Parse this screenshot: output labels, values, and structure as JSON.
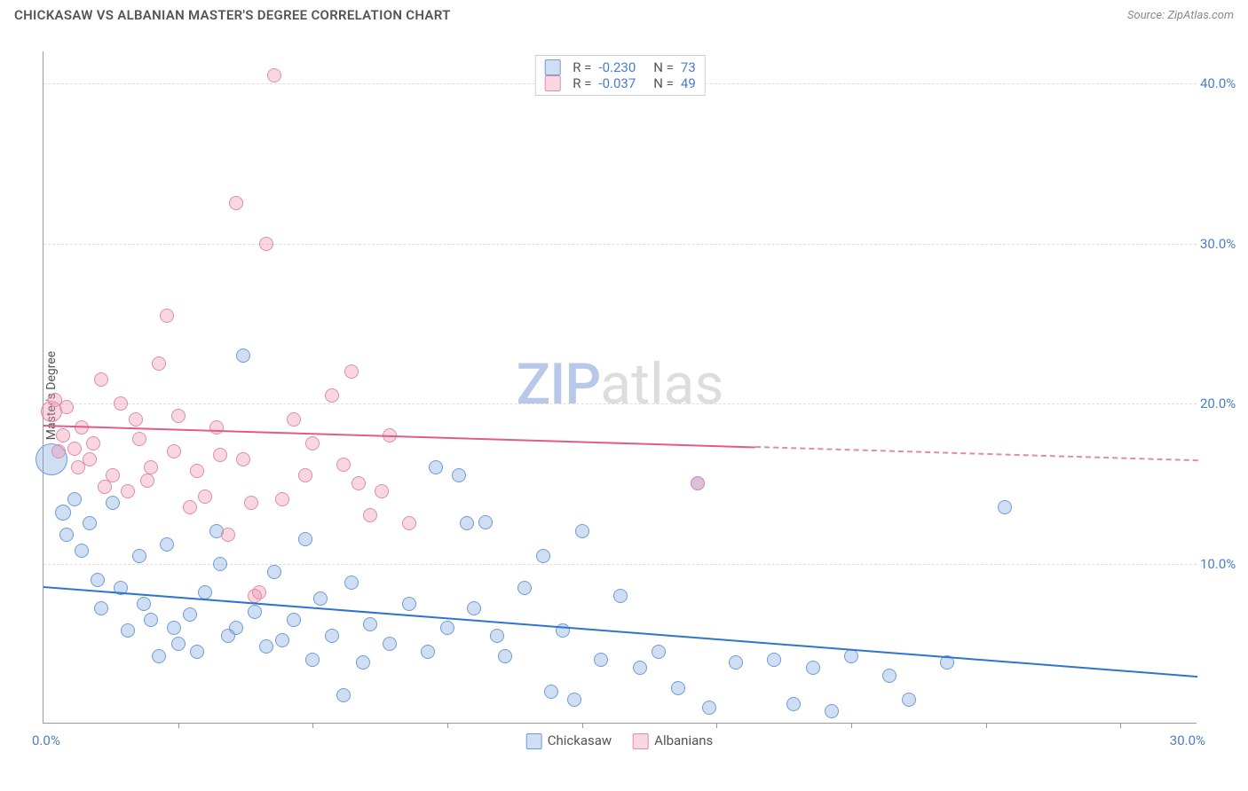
{
  "header": {
    "title": "CHICKASAW VS ALBANIAN MASTER'S DEGREE CORRELATION CHART",
    "source_prefix": "Source: ",
    "source": "ZipAtlas.com"
  },
  "chart": {
    "type": "scatter",
    "ylabel": "Master's Degree",
    "xlim": [
      0,
      30
    ],
    "ylim": [
      0,
      42
    ],
    "xticks_minor": [
      3.5,
      7,
      10.5,
      14,
      17.5,
      21,
      24.5,
      28
    ],
    "yticks": [
      {
        "v": 10,
        "label": "10.0%"
      },
      {
        "v": 20,
        "label": "20.0%"
      },
      {
        "v": 30,
        "label": "30.0%"
      },
      {
        "v": 40,
        "label": "40.0%"
      }
    ],
    "xmin_label": "0.0%",
    "xmax_label": "30.0%",
    "background": "#ffffff",
    "grid_color": "#dddddd",
    "axis_color": "#999999",
    "tick_label_color": "#4a7ec9",
    "watermark": {
      "part1": "ZIP",
      "part2": "atlas"
    },
    "series": [
      {
        "id": "chickasaw",
        "label": "Chickasaw",
        "R": "-0.230",
        "N": "73",
        "fill": "rgba(120,160,220,0.35)",
        "stroke": "#6e9cd6",
        "line_color": "#2e74d0",
        "marker_radius": 8,
        "regression": {
          "y_at_xmin": 8.6,
          "y_at_xmax": 3.0,
          "solid_until_x": 30
        },
        "points": [
          [
            0.2,
            16.5,
            18
          ],
          [
            0.5,
            13.2,
            9
          ],
          [
            0.8,
            14.0,
            8
          ],
          [
            1.0,
            10.8,
            8
          ],
          [
            1.2,
            12.5,
            8
          ],
          [
            1.5,
            7.2,
            8
          ],
          [
            1.8,
            13.8,
            8
          ],
          [
            2.0,
            8.5,
            8
          ],
          [
            2.2,
            5.8,
            8
          ],
          [
            2.5,
            10.5,
            8
          ],
          [
            2.8,
            6.5,
            8
          ],
          [
            3.0,
            4.2,
            8
          ],
          [
            3.2,
            11.2,
            8
          ],
          [
            3.5,
            5.0,
            8
          ],
          [
            3.8,
            6.8,
            8
          ],
          [
            4.0,
            4.5,
            8
          ],
          [
            4.2,
            8.2,
            8
          ],
          [
            4.5,
            12.0,
            8
          ],
          [
            4.8,
            5.5,
            8
          ],
          [
            5.0,
            6.0,
            8
          ],
          [
            5.2,
            23.0,
            8
          ],
          [
            5.5,
            7.0,
            8
          ],
          [
            5.8,
            4.8,
            8
          ],
          [
            6.0,
            9.5,
            8
          ],
          [
            6.2,
            5.2,
            8
          ],
          [
            6.5,
            6.5,
            8
          ],
          [
            6.8,
            11.5,
            8
          ],
          [
            7.0,
            4.0,
            8
          ],
          [
            7.2,
            7.8,
            8
          ],
          [
            7.5,
            5.5,
            8
          ],
          [
            7.8,
            1.8,
            8
          ],
          [
            8.0,
            8.8,
            8
          ],
          [
            8.5,
            6.2,
            8
          ],
          [
            9.0,
            5.0,
            8
          ],
          [
            9.5,
            7.5,
            8
          ],
          [
            10.0,
            4.5,
            8
          ],
          [
            10.2,
            16.0,
            8
          ],
          [
            10.5,
            6.0,
            8
          ],
          [
            10.8,
            15.5,
            8
          ],
          [
            11.0,
            12.5,
            8
          ],
          [
            11.2,
            7.2,
            8
          ],
          [
            11.5,
            12.6,
            8
          ],
          [
            11.8,
            5.5,
            8
          ],
          [
            12.0,
            4.2,
            8
          ],
          [
            12.5,
            8.5,
            8
          ],
          [
            13.0,
            10.5,
            8
          ],
          [
            13.2,
            2.0,
            8
          ],
          [
            13.5,
            5.8,
            8
          ],
          [
            13.8,
            1.5,
            8
          ],
          [
            14.0,
            12.0,
            8
          ],
          [
            14.5,
            4.0,
            8
          ],
          [
            15.0,
            8.0,
            8
          ],
          [
            15.5,
            3.5,
            8
          ],
          [
            16.0,
            4.5,
            8
          ],
          [
            16.5,
            2.2,
            8
          ],
          [
            17.0,
            15.0,
            8
          ],
          [
            17.3,
            1.0,
            8
          ],
          [
            18.0,
            3.8,
            8
          ],
          [
            19.0,
            4.0,
            8
          ],
          [
            19.5,
            1.2,
            8
          ],
          [
            20.0,
            3.5,
            8
          ],
          [
            20.5,
            0.8,
            8
          ],
          [
            21.0,
            4.2,
            8
          ],
          [
            22.0,
            3.0,
            8
          ],
          [
            22.5,
            1.5,
            8
          ],
          [
            23.5,
            3.8,
            8
          ],
          [
            25.0,
            13.5,
            8
          ],
          [
            0.6,
            11.8,
            8
          ],
          [
            1.4,
            9.0,
            8
          ],
          [
            2.6,
            7.5,
            8
          ],
          [
            3.4,
            6.0,
            8
          ],
          [
            4.6,
            10.0,
            8
          ],
          [
            8.3,
            3.8,
            8
          ]
        ]
      },
      {
        "id": "albanians",
        "label": "Albanians",
        "R": "-0.037",
        "N": "49",
        "fill": "rgba(235,140,170,0.35)",
        "stroke": "#e08ca8",
        "line_color": "#e35a8a",
        "marker_radius": 8,
        "regression": {
          "y_at_xmin": 18.7,
          "y_at_xmax": 16.5,
          "solid_until_x": 18.5
        },
        "points": [
          [
            0.2,
            19.5,
            12
          ],
          [
            0.3,
            20.2,
            8
          ],
          [
            0.5,
            18.0,
            8
          ],
          [
            0.6,
            19.8,
            8
          ],
          [
            0.8,
            17.2,
            8
          ],
          [
            1.0,
            18.5,
            8
          ],
          [
            1.2,
            16.5,
            8
          ],
          [
            1.5,
            21.5,
            8
          ],
          [
            1.8,
            15.5,
            8
          ],
          [
            2.0,
            20.0,
            8
          ],
          [
            2.2,
            14.5,
            8
          ],
          [
            2.5,
            17.8,
            8
          ],
          [
            2.8,
            16.0,
            8
          ],
          [
            3.0,
            22.5,
            8
          ],
          [
            3.2,
            25.5,
            8
          ],
          [
            3.5,
            19.2,
            8
          ],
          [
            3.8,
            13.5,
            8
          ],
          [
            4.0,
            15.8,
            8
          ],
          [
            4.5,
            18.5,
            8
          ],
          [
            4.8,
            11.8,
            8
          ],
          [
            5.0,
            32.5,
            8
          ],
          [
            5.2,
            16.5,
            8
          ],
          [
            5.5,
            8.0,
            8
          ],
          [
            5.6,
            8.2,
            8
          ],
          [
            5.8,
            30.0,
            8
          ],
          [
            6.0,
            40.5,
            8
          ],
          [
            6.2,
            14.0,
            8
          ],
          [
            6.5,
            19.0,
            8
          ],
          [
            7.0,
            17.5,
            8
          ],
          [
            7.5,
            20.5,
            8
          ],
          [
            8.0,
            22.0,
            8
          ],
          [
            8.2,
            15.0,
            8
          ],
          [
            8.5,
            13.0,
            8
          ],
          [
            9.0,
            18.0,
            8
          ],
          [
            9.5,
            12.5,
            8
          ],
          [
            17.0,
            15.0,
            8
          ],
          [
            0.4,
            17.0,
            8
          ],
          [
            0.9,
            16.0,
            8
          ],
          [
            1.3,
            17.5,
            8
          ],
          [
            1.6,
            14.8,
            8
          ],
          [
            2.4,
            19.0,
            8
          ],
          [
            2.7,
            15.2,
            8
          ],
          [
            3.4,
            17.0,
            8
          ],
          [
            4.2,
            14.2,
            8
          ],
          [
            4.6,
            16.8,
            8
          ],
          [
            5.4,
            13.8,
            8
          ],
          [
            6.8,
            15.5,
            8
          ],
          [
            7.8,
            16.2,
            8
          ],
          [
            8.8,
            14.5,
            8
          ]
        ]
      }
    ]
  }
}
